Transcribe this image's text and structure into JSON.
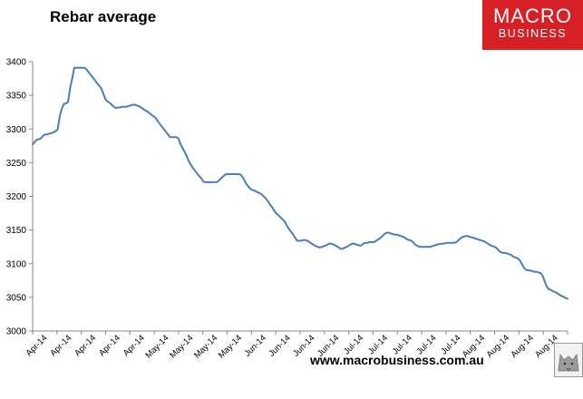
{
  "colors": {
    "line": "#4a7ebb",
    "axis": "#878787",
    "brand": "#d71f26"
  },
  "icons": {
    "mascot": "wolf-mascot-icon"
  },
  "header": {
    "title": "Rebar average"
  },
  "logo": {
    "line1": "MACRO",
    "line2": "BUSINESS"
  },
  "footer": {
    "url": "www.macrobusiness.com.au"
  },
  "chart_data": {
    "type": "line",
    "title": "Rebar average",
    "xlabel": "",
    "ylabel": "",
    "ylim": [
      3000,
      3400
    ],
    "yticks": [
      3000,
      3050,
      3100,
      3150,
      3200,
      3250,
      3300,
      3350,
      3400
    ],
    "grid": false,
    "legend": "none",
    "xtick_labels": [
      "Apr-14",
      "Apr-14",
      "Apr-14",
      "Apr-14",
      "Apr-14",
      "May-14",
      "May-14",
      "May-14",
      "May-14",
      "Jun-14",
      "Jun-14",
      "Jun-14",
      "Jun-14",
      "Jul-14",
      "Jul-14",
      "Jul-14",
      "Jul-14",
      "Jul-14",
      "Aug-14",
      "Aug-14",
      "Aug-14",
      "Aug-14"
    ],
    "series": [
      {
        "values": [
          3277,
          3281,
          3284,
          3285,
          3286,
          3290,
          3292,
          3292,
          3293,
          3294,
          3295,
          3297,
          3299,
          3318,
          3330,
          3337,
          3338,
          3340,
          3360,
          3375,
          3391,
          3391,
          3391,
          3391,
          3391,
          3391,
          3388,
          3384,
          3380,
          3376,
          3372,
          3368,
          3364,
          3360,
          3352,
          3344,
          3341,
          3339,
          3336,
          3333,
          3331,
          3332,
          3332,
          3333,
          3333,
          3333,
          3334,
          3335,
          3336,
          3336,
          3335,
          3334,
          3332,
          3330,
          3328,
          3326,
          3324,
          3321,
          3319,
          3317,
          3312,
          3308,
          3304,
          3300,
          3296,
          3292,
          3288,
          3288,
          3288,
          3288,
          3286,
          3278,
          3272,
          3266,
          3260,
          3252,
          3247,
          3242,
          3238,
          3234,
          3230,
          3227,
          3222,
          3221,
          3221,
          3221,
          3221,
          3221,
          3221,
          3222,
          3225,
          3228,
          3231,
          3233,
          3233,
          3233,
          3233,
          3233,
          3233,
          3233,
          3232,
          3228,
          3222,
          3217,
          3213,
          3210,
          3209,
          3208,
          3206,
          3205,
          3203,
          3200,
          3197,
          3193,
          3188,
          3184,
          3179,
          3175,
          3172,
          3169,
          3166,
          3163,
          3157,
          3152,
          3148,
          3144,
          3139,
          3134,
          3134,
          3134,
          3135,
          3135,
          3134,
          3132,
          3130,
          3128,
          3126,
          3125,
          3124,
          3125,
          3126,
          3127,
          3129,
          3130,
          3129,
          3128,
          3126,
          3124,
          3122,
          3122,
          3124,
          3125,
          3127,
          3129,
          3130,
          3129,
          3128,
          3127,
          3127,
          3130,
          3131,
          3131,
          3132,
          3132,
          3132,
          3134,
          3136,
          3138,
          3141,
          3144,
          3146,
          3146,
          3145,
          3144,
          3143,
          3143,
          3142,
          3141,
          3140,
          3138,
          3136,
          3135,
          3134,
          3131,
          3128,
          3126,
          3125,
          3125,
          3125,
          3125,
          3125,
          3125,
          3126,
          3127,
          3128,
          3129,
          3129,
          3130,
          3130,
          3131,
          3131,
          3131,
          3131,
          3131,
          3133,
          3136,
          3139,
          3140,
          3141,
          3141,
          3140,
          3139,
          3138,
          3137,
          3136,
          3135,
          3134,
          3133,
          3131,
          3129,
          3127,
          3126,
          3125,
          3123,
          3119,
          3117,
          3116,
          3116,
          3115,
          3114,
          3113,
          3110,
          3109,
          3108,
          3105,
          3100,
          3094,
          3091,
          3090,
          3090,
          3089,
          3088,
          3088,
          3087,
          3086,
          3082,
          3074,
          3066,
          3062,
          3061,
          3059,
          3058,
          3056,
          3054,
          3052,
          3051,
          3049,
          3048
        ]
      }
    ]
  }
}
